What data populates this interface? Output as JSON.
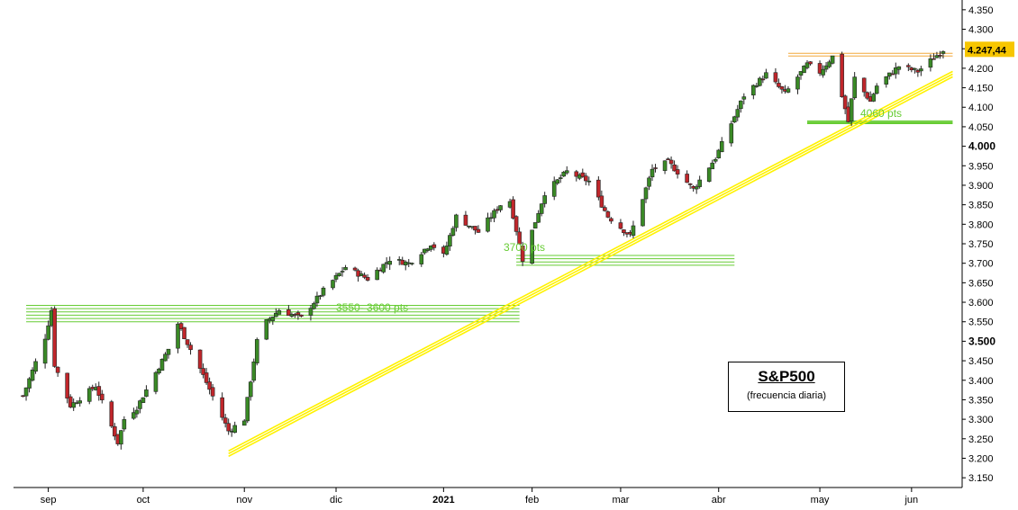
{
  "chart_data": {
    "type": "candlestick",
    "title": "S&P500",
    "subtitle": "(frecuencia diaria)",
    "ylim": [
      3125,
      4375
    ],
    "y_ticks": [
      3150,
      3200,
      3250,
      3300,
      3350,
      3400,
      3450,
      3500,
      3550,
      3600,
      3650,
      3700,
      3750,
      3800,
      3850,
      3900,
      3950,
      4000,
      4050,
      4100,
      4150,
      4200,
      4250,
      4300,
      4350
    ],
    "y_tick_labels": [
      "3.150",
      "3.200",
      "3.250",
      "3.300",
      "3.350",
      "3.400",
      "3.450",
      "3.500",
      "3.550",
      "3.600",
      "3.650",
      "3.700",
      "3.750",
      "3.800",
      "3.850",
      "3.900",
      "3.950",
      "4.000",
      "4.050",
      "4.100",
      "4.150",
      "4.200",
      "4.250",
      "4.300",
      "4.350"
    ],
    "y_major_ticks": [
      "3.500",
      "4.000"
    ],
    "x_labels": [
      "sep",
      "oct",
      "nov",
      "dic",
      "2021",
      "feb",
      "mar",
      "abr",
      "may",
      "jun"
    ],
    "x_major_labels": [
      "2021"
    ],
    "x_label_dates": [
      "2020-09-01",
      "2020-10-01",
      "2020-11-02",
      "2020-12-01",
      "2021-01-04",
      "2021-02-01",
      "2021-03-01",
      "2021-04-01",
      "2021-05-03",
      "2021-06-01"
    ],
    "last_price": 4247.44,
    "last_price_label": "4.247,44",
    "colors": {
      "up": "#3a8a26",
      "down": "#c0262b",
      "support": "#66cc33",
      "trendline": "#fff200",
      "resistance": "#f2a93b",
      "price_tag": "#f7c600"
    },
    "zones": [
      {
        "label": "3550- 3600 pts",
        "low": 3550,
        "high": 3592,
        "x_start": "2020-08-25",
        "x_end": "2021-01-28"
      },
      {
        "label": "3700 pts",
        "low": 3695,
        "high": 3720,
        "x_start": "2021-01-27",
        "x_end": "2021-04-06"
      },
      {
        "label": "4060 pts",
        "low": 4058,
        "high": 4065,
        "x_start": "2021-04-29",
        "x_end": "2021-06-14"
      }
    ],
    "resistance": {
      "value": 4236,
      "x_start": "2021-04-23",
      "x_end": "2021-06-14"
    },
    "trendline": {
      "start_date": "2020-10-28",
      "start_value": 3212,
      "end_date": "2021-06-14",
      "end_value": 4185
    },
    "anchor_closes": [
      [
        "2020-08-24",
        3360
      ],
      [
        "2020-08-31",
        3510
      ],
      [
        "2020-09-02",
        3580
      ],
      [
        "2020-09-03",
        3440
      ],
      [
        "2020-09-08",
        3335
      ],
      [
        "2020-09-16",
        3385
      ],
      [
        "2020-09-23",
        3240
      ],
      [
        "2020-09-25",
        3300
      ],
      [
        "2020-09-29",
        3330
      ],
      [
        "2020-10-09",
        3480
      ],
      [
        "2020-10-12",
        3545
      ],
      [
        "2020-10-19",
        3430
      ],
      [
        "2020-10-28",
        3270
      ],
      [
        "2020-11-02",
        3300
      ],
      [
        "2020-11-06",
        3500
      ],
      [
        "2020-11-09",
        3550
      ],
      [
        "2020-11-13",
        3580
      ],
      [
        "2020-11-20",
        3560
      ],
      [
        "2020-11-27",
        3630
      ],
      [
        "2020-12-04",
        3690
      ],
      [
        "2020-12-11",
        3660
      ],
      [
        "2020-12-18",
        3710
      ],
      [
        "2020-12-24",
        3700
      ],
      [
        "2020-12-31",
        3750
      ],
      [
        "2021-01-04",
        3720
      ],
      [
        "2021-01-08",
        3820
      ],
      [
        "2021-01-15",
        3780
      ],
      [
        "2021-01-22",
        3850
      ],
      [
        "2021-01-25",
        3860
      ],
      [
        "2021-01-29",
        3710
      ],
      [
        "2021-02-05",
        3880
      ],
      [
        "2021-02-12",
        3935
      ],
      [
        "2021-02-19",
        3910
      ],
      [
        "2021-02-25",
        3820
      ],
      [
        "2021-03-04",
        3770
      ],
      [
        "2021-03-11",
        3940
      ],
      [
        "2021-03-16",
        3960
      ],
      [
        "2021-03-24",
        3890
      ],
      [
        "2021-03-31",
        3970
      ],
      [
        "2021-04-09",
        4130
      ],
      [
        "2021-04-16",
        4185
      ],
      [
        "2021-04-22",
        4135
      ],
      [
        "2021-04-29",
        4210
      ],
      [
        "2021-05-03",
        4190
      ],
      [
        "2021-05-07",
        4230
      ],
      [
        "2021-05-12",
        4063
      ],
      [
        "2021-05-14",
        4175
      ],
      [
        "2021-05-19",
        4115
      ],
      [
        "2021-05-21",
        4155
      ],
      [
        "2021-05-28",
        4205
      ],
      [
        "2021-06-03",
        4192
      ],
      [
        "2021-06-11",
        4247
      ]
    ]
  }
}
